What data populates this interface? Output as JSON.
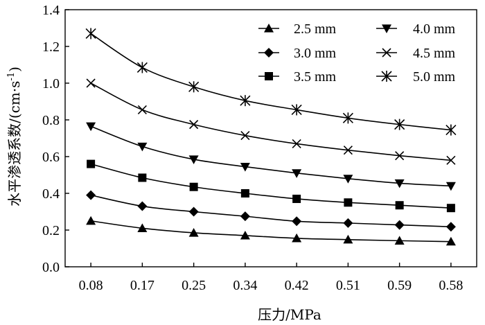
{
  "chart_data": {
    "type": "line",
    "xlabel": "压力/MPa",
    "ylabel_main": "水平渗透系数/(cm·s",
    "ylabel_sup": "-1",
    "ylabel_end": ")",
    "categories": [
      "0.08",
      "0.17",
      "0.25",
      "0.34",
      "0.42",
      "0.51",
      "0.59",
      "0.58"
    ],
    "ylim": [
      0,
      1.4
    ],
    "yticks": [
      "0.0",
      "0.2",
      "0.4",
      "0.6",
      "0.8",
      "1.0",
      "1.2",
      "1.4"
    ],
    "grid": false,
    "legend_position": "top-right",
    "series": [
      {
        "name": "2.5 mm",
        "marker": "triangle-up",
        "values": [
          0.25,
          0.21,
          0.185,
          0.17,
          0.155,
          0.148,
          0.142,
          0.137
        ]
      },
      {
        "name": "3.0 mm",
        "marker": "diamond",
        "values": [
          0.39,
          0.33,
          0.3,
          0.275,
          0.248,
          0.238,
          0.228,
          0.218
        ]
      },
      {
        "name": "3.5 mm",
        "marker": "square",
        "values": [
          0.56,
          0.485,
          0.435,
          0.4,
          0.37,
          0.35,
          0.335,
          0.32
        ]
      },
      {
        "name": "4.0 mm",
        "marker": "triangle-down",
        "values": [
          0.765,
          0.655,
          0.585,
          0.545,
          0.51,
          0.48,
          0.455,
          0.44
        ]
      },
      {
        "name": "4.5 mm",
        "marker": "x",
        "values": [
          1.0,
          0.855,
          0.775,
          0.715,
          0.67,
          0.635,
          0.605,
          0.58
        ]
      },
      {
        "name": "5.0 mm",
        "marker": "asterisk",
        "values": [
          1.27,
          1.085,
          0.98,
          0.905,
          0.855,
          0.81,
          0.775,
          0.745
        ]
      }
    ]
  }
}
